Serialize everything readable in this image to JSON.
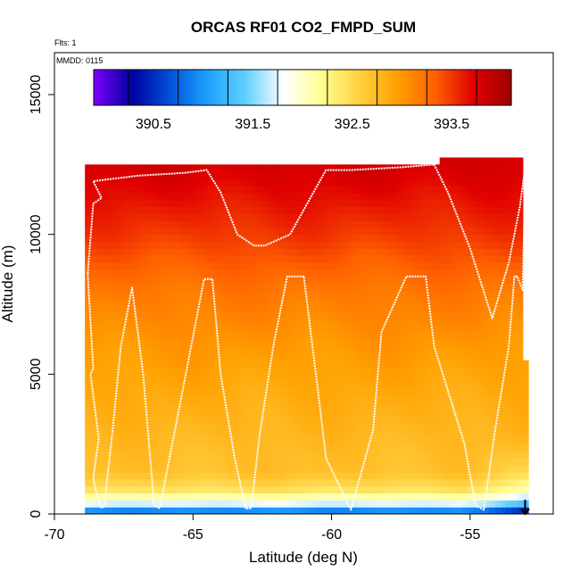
{
  "chart_data": {
    "type": "heatmap",
    "title": "ORCAS RF01 CO2_FMPD_SUM",
    "subtitle_flights": "Flts: 1",
    "subtitle_date": "MMDD: 0115",
    "xlabel": "Latitude (deg N)",
    "ylabel": "Altitude (m)",
    "xlim": [
      -70,
      -52
    ],
    "ylim": [
      0,
      16500
    ],
    "x_ticks": [
      -70,
      -65,
      -60,
      -55
    ],
    "x_tick_labels": [
      "-70",
      "-65",
      "-60",
      "-55"
    ],
    "y_ticks": [
      0,
      5000,
      10000,
      15000
    ],
    "y_tick_labels": [
      "0",
      "5000",
      "10000",
      "15000"
    ],
    "colorbar": {
      "range": [
        389.9,
        394.1
      ],
      "ticks": [
        390.5,
        391.5,
        392.5,
        393.5
      ],
      "tick_labels": [
        "390.5",
        "391.5",
        "392.5",
        "393.5"
      ],
      "boundaries": [
        390.25,
        390.75,
        391.25,
        391.75,
        392.25,
        392.75,
        393.25,
        393.75
      ],
      "colors": [
        "#7d00ff",
        "#0000a0",
        "#0050d8",
        "#1ea0ff",
        "#60d0ff",
        "#ffffff",
        "#ffff90",
        "#ffd040",
        "#ffa000",
        "#ff6000",
        "#e00000",
        "#a00000"
      ]
    },
    "co2_profile": {
      "altitudes_m": [
        0,
        150,
        400,
        700,
        1000,
        1500,
        2500,
        4000,
        6000,
        8000,
        10000,
        12500
      ],
      "values_ppm": [
        390.4,
        391.2,
        391.9,
        392.3,
        392.5,
        392.7,
        392.75,
        392.85,
        393.0,
        393.2,
        393.5,
        393.8
      ]
    },
    "flight_track": {
      "lat": [
        -68.8,
        -68.6,
        -68.7,
        -68.4,
        -68.6,
        -68.5,
        -68.3,
        -68.2,
        -67.9,
        -67.6,
        -67.2,
        -66.8,
        -66.5,
        -66.4,
        -66.2,
        -65.3,
        -64.6,
        -64.3,
        -64.0,
        -63.5,
        -63.1,
        -62.9,
        -62.6,
        -62.1,
        -61.6,
        -61.0,
        -60.5,
        -60.2,
        -59.3,
        -58.5,
        -58.2,
        -57.3,
        -56.6,
        -56.3,
        -55.2,
        -54.8,
        -54.5,
        -54.1,
        -53.6,
        -53.4,
        -53.3,
        -53.1,
        -53.0,
        -53.2,
        -53.6,
        -54.2,
        -55.0,
        -55.8,
        -56.3,
        -57.5,
        -59.3,
        -60.2,
        -61.5,
        -62.4,
        -62.8,
        -63.4,
        -64.0,
        -64.5,
        -65.3,
        -67.0,
        -68.6,
        -68.3,
        -68.6,
        -68.8
      ],
      "alt_m": [
        8600,
        5200,
        5000,
        2700,
        1300,
        800,
        200,
        300,
        3000,
        6000,
        8100,
        5000,
        1500,
        300,
        200,
        4800,
        8400,
        8400,
        5000,
        2000,
        200,
        200,
        2800,
        6000,
        8500,
        8500,
        4500,
        2000,
        150,
        3000,
        6500,
        8500,
        8500,
        6000,
        2500,
        300,
        150,
        3000,
        6000,
        8500,
        8500,
        8000,
        12500,
        11000,
        9000,
        7000,
        9500,
        11500,
        12500,
        12400,
        12300,
        12300,
        10000,
        9600,
        9600,
        10000,
        11500,
        12300,
        12200,
        12100,
        11900,
        11300,
        11100,
        8600
      ]
    }
  }
}
